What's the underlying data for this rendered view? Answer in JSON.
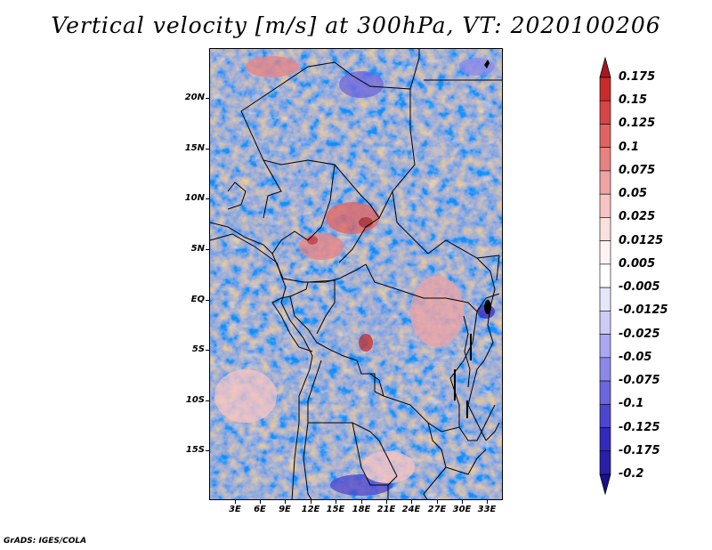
{
  "title": "Vertical velocity [m/s] at 300hPa, VT: 2020100206",
  "footer": "GrADS: IGES/COLA",
  "map": {
    "lat_labels": [
      "20N",
      "15N",
      "10N",
      "5N",
      "EQ",
      "5S",
      "10S",
      "15S"
    ],
    "lon_labels": [
      "3E",
      "6E",
      "9E",
      "12E",
      "15E",
      "18E",
      "21E",
      "24E",
      "27E",
      "30E",
      "33E"
    ]
  },
  "colorbar": {
    "levels": [
      "0.175",
      "0.15",
      "0.125",
      "0.1",
      "0.075",
      "0.05",
      "0.025",
      "0.0125",
      "0.005",
      "-0.005",
      "-0.0125",
      "-0.025",
      "-0.05",
      "-0.075",
      "-0.1",
      "-0.125",
      "-0.175",
      "-0.2"
    ],
    "colors": [
      "#a8191f",
      "#c62c2c",
      "#d64545",
      "#e06363",
      "#e88383",
      "#f0a3a3",
      "#f6c4c4",
      "#fbe0e0",
      "#fff2f2",
      "#ffffff",
      "#e6e6fb",
      "#ccccf6",
      "#aaa8f0",
      "#8b88e8",
      "#6b66dd",
      "#4c46cf",
      "#3329bd",
      "#2a1fa8",
      "#1a0f8c"
    ]
  }
}
